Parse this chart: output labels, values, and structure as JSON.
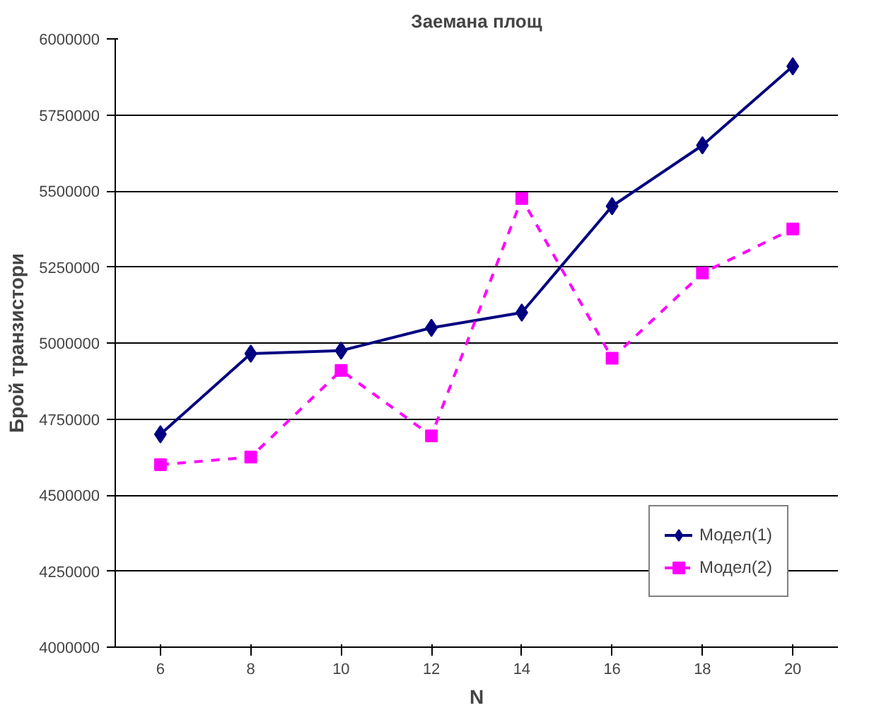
{
  "chart_data": {
    "type": "line",
    "title": "Заемана площ",
    "xlabel": "N",
    "ylabel": "Брой транзистори",
    "categories": [
      "6",
      "8",
      "10",
      "12",
      "14",
      "16",
      "18",
      "20"
    ],
    "series": [
      {
        "name": "Модел(1)",
        "color": "#000080",
        "marker": "diamond",
        "line_style": "solid",
        "values": [
          4700000,
          4965000,
          4975000,
          5050000,
          5100000,
          5450000,
          5650000,
          5910000
        ]
      },
      {
        "name": "Модел(2)",
        "color": "#ff00ff",
        "marker": "square",
        "line_style": "dashed",
        "values": [
          4600000,
          4625000,
          4910000,
          4695000,
          5475000,
          4950000,
          5230000,
          5375000
        ]
      }
    ],
    "ylim": [
      4000000,
      6000000
    ],
    "yticks": [
      4000000,
      4250000,
      4500000,
      4750000,
      5000000,
      5250000,
      5500000,
      5750000,
      6000000
    ],
    "grid": "y",
    "legend": "bottom right"
  }
}
